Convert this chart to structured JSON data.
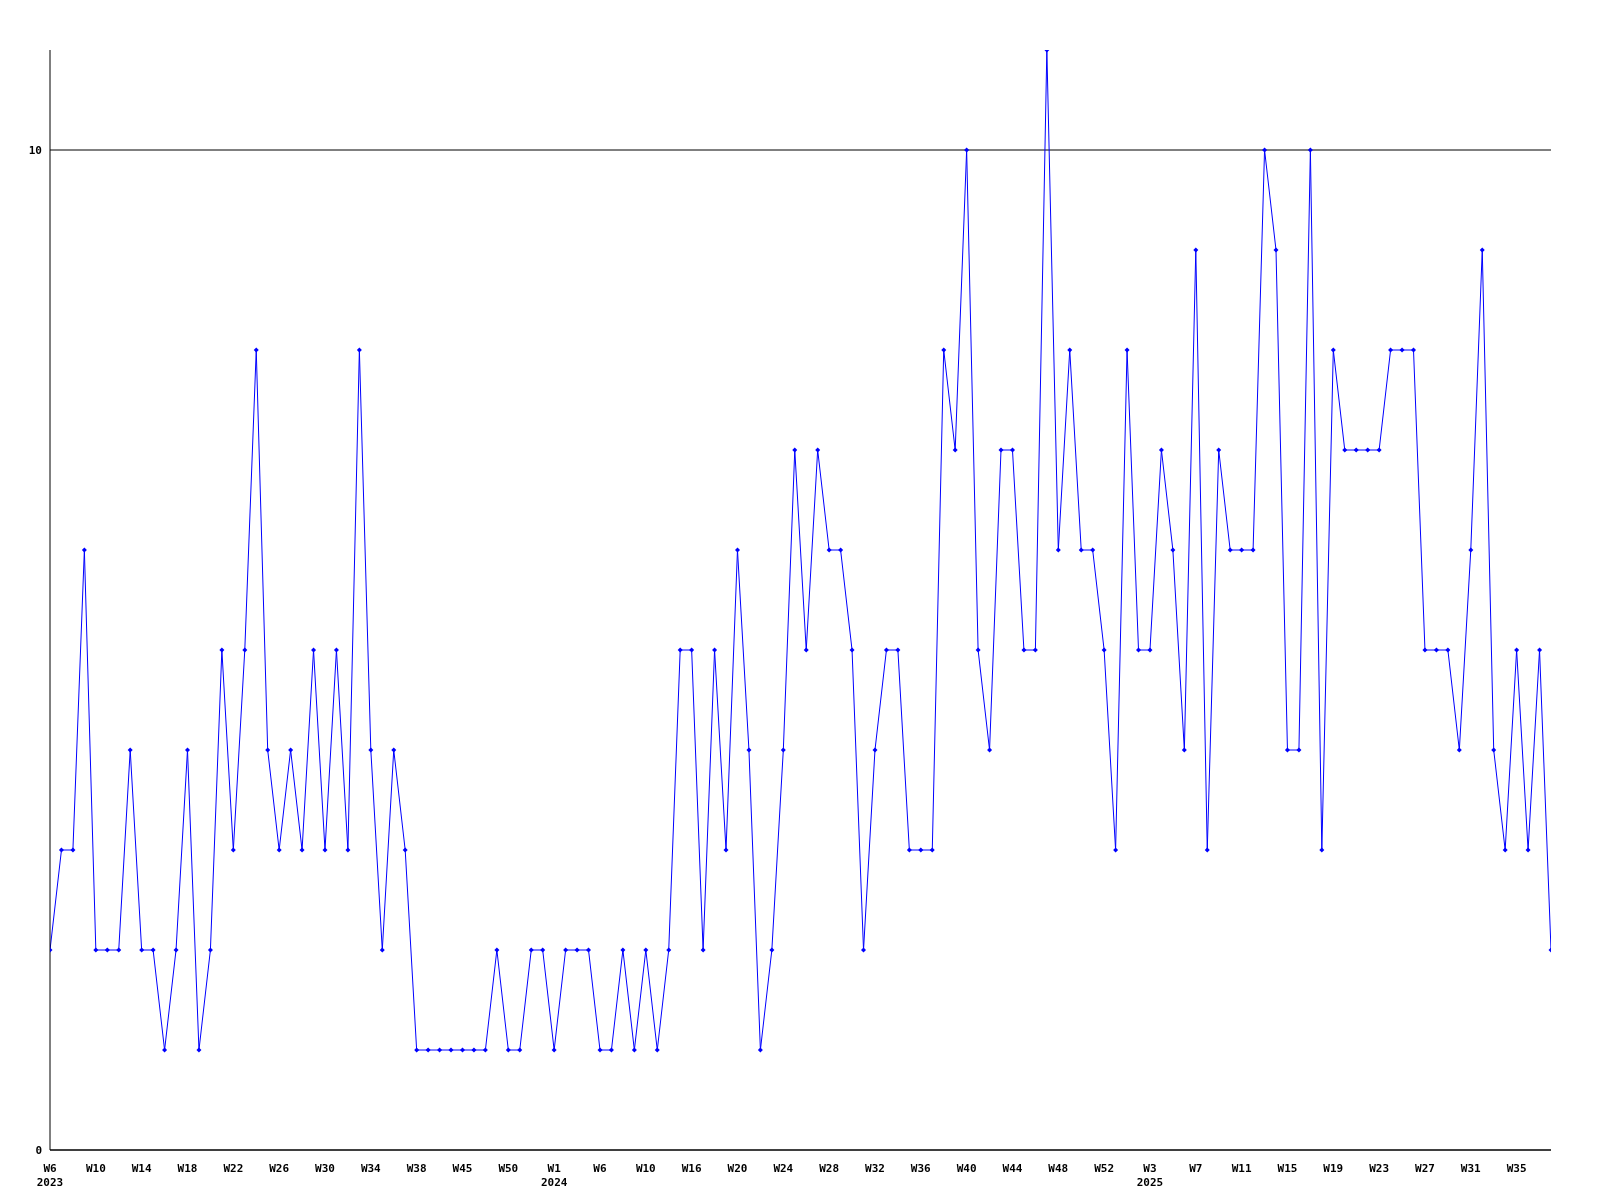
{
  "chart_data": {
    "type": "line",
    "categories": [
      "W6\n2023",
      null,
      null,
      null,
      "W10",
      null,
      null,
      null,
      "W14",
      null,
      null,
      null,
      "W18",
      null,
      null,
      null,
      "W22",
      null,
      null,
      null,
      "W26",
      null,
      null,
      null,
      "W30",
      null,
      null,
      null,
      "W34",
      null,
      null,
      null,
      "W38",
      null,
      null,
      null,
      "W45",
      null,
      null,
      null,
      "W50",
      null,
      null,
      null,
      "W1\n2024",
      null,
      null,
      null,
      "W6",
      null,
      null,
      null,
      "W10",
      null,
      null,
      null,
      "W16",
      null,
      null,
      null,
      "W20",
      null,
      null,
      null,
      "W24",
      null,
      null,
      null,
      "W28",
      null,
      null,
      null,
      "W32",
      null,
      null,
      null,
      "W36",
      null,
      null,
      null,
      "W40",
      null,
      null,
      null,
      "W44",
      null,
      null,
      null,
      "W48",
      null,
      null,
      null,
      "W52",
      null,
      null,
      null,
      "W3\n2025",
      null,
      null,
      null,
      "W7",
      null,
      null,
      null,
      "W11",
      null,
      null,
      null,
      "W15",
      null,
      null,
      null,
      "W19",
      null,
      null,
      null,
      "W23",
      null,
      null,
      null,
      "W27",
      null,
      null,
      null,
      "W31",
      null,
      null,
      null,
      "W35",
      null,
      null,
      null
    ],
    "series": [
      {
        "color": "#0000ff",
        "values": [
          2,
          3,
          3,
          6,
          2,
          2,
          2,
          4,
          2,
          2,
          1,
          2,
          4,
          1,
          2,
          5,
          3,
          5,
          8,
          4,
          3,
          4,
          3,
          5,
          3,
          5,
          3,
          8,
          4,
          2,
          4,
          3,
          1,
          1,
          1,
          1,
          1,
          1,
          1,
          2,
          1,
          1,
          2,
          2,
          1,
          2,
          2,
          2,
          1,
          1,
          2,
          1,
          2,
          1,
          2,
          5,
          5,
          2,
          5,
          3,
          6,
          4,
          1,
          2,
          4,
          7,
          5,
          7,
          6,
          6,
          5,
          2,
          4,
          5,
          5,
          3,
          3,
          3,
          8,
          7,
          10,
          5,
          4,
          7,
          7,
          5,
          5,
          11,
          6,
          8,
          6,
          6,
          5,
          3,
          8,
          5,
          5,
          7,
          6,
          4,
          9,
          3,
          7,
          6,
          6,
          6,
          10,
          9,
          4,
          4,
          10,
          3,
          8,
          7,
          7,
          7,
          7,
          8,
          8,
          8,
          5,
          5,
          5,
          4,
          6,
          9,
          4,
          3,
          5,
          3,
          5,
          2
        ]
      }
    ],
    "ylim": [
      0,
      11
    ],
    "yticks": [
      0,
      10
    ],
    "grid": "y",
    "marker": "diamond",
    "line_style": "solid"
  }
}
